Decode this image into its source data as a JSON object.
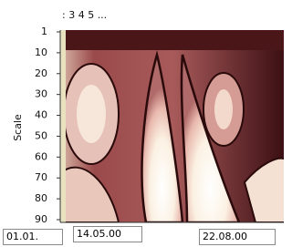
{
  "header": {
    "series_text": ": 3 4 5 ..."
  },
  "axis": {
    "title": "Scale",
    "ticks": [
      "1",
      "10",
      "20",
      "30",
      "40",
      "50",
      "60",
      "70",
      "80",
      "90"
    ]
  },
  "dates": {
    "start": "01.01.",
    "mid": "14.05.00",
    "end": "22.08.00"
  }
}
